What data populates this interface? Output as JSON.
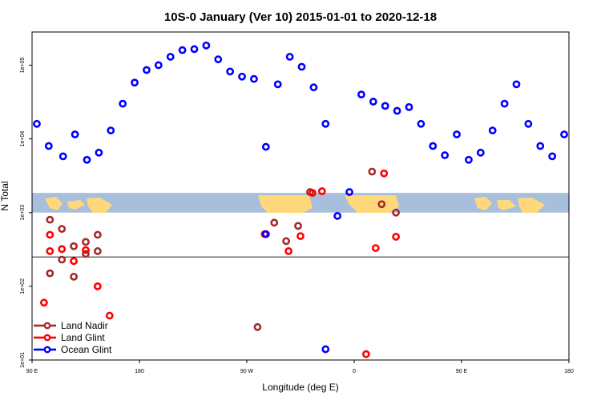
{
  "chart_data": {
    "type": "scatter",
    "title": "10S-0 January (Ver 10)   2015-01-01 to 2020-12-18",
    "xlabel": "Longitude (deg E)",
    "ylabel": "N Total",
    "xlim": [
      90,
      540
    ],
    "ylog": true,
    "ylim_log10": [
      1.0,
      5.45
    ],
    "reference_line_y": 250,
    "map_band": {
      "lat_range": "10S-0",
      "x_range": [
        90,
        540
      ],
      "y_range": [
        1000,
        1850
      ]
    },
    "x_ticks": [
      {
        "value": 90,
        "label": "90 E"
      },
      {
        "value": 180,
        "label": "180"
      },
      {
        "value": 270,
        "label": "90 W"
      },
      {
        "value": 360,
        "label": "0"
      },
      {
        "value": 450,
        "label": "90 E"
      },
      {
        "value": 540,
        "label": "180"
      }
    ],
    "y_ticks": [
      {
        "value": 10,
        "label": "1e+01"
      },
      {
        "value": 100,
        "label": "1e+02"
      },
      {
        "value": 1000,
        "label": "1e+03"
      },
      {
        "value": 10000,
        "label": "1e+04"
      },
      {
        "value": 100000,
        "label": "1e+05"
      }
    ],
    "series": [
      {
        "name": "Land Nadir",
        "color": "#a52a2a",
        "x": [
          105,
          115,
          125,
          135,
          145,
          279,
          293,
          303,
          313,
          323,
          375,
          383,
          395,
          105,
          115,
          125,
          135,
          145
        ],
        "y": [
          150,
          230,
          135,
          275,
          300,
          28,
          730,
          410,
          660,
          1900,
          3600,
          1300,
          1000,
          800,
          600,
          350,
          400,
          500
        ]
      },
      {
        "name": "Land Glint",
        "color": "#ff0000",
        "x": [
          100,
          105,
          115,
          125,
          135,
          145,
          155,
          285,
          305,
          315,
          325,
          333,
          370,
          378,
          385,
          395,
          105
        ],
        "y": [
          60,
          300,
          320,
          220,
          310,
          100,
          40,
          510,
          300,
          480,
          1850,
          1950,
          12,
          330,
          3400,
          470,
          500
        ]
      },
      {
        "name": "Ocean Glint",
        "color": "#0000ff",
        "x": [
          94,
          104,
          116,
          126,
          136,
          146,
          156,
          166,
          176,
          186,
          196,
          206,
          216,
          226,
          236,
          246,
          256,
          266,
          276,
          286,
          296,
          306,
          316,
          326,
          336,
          346,
          356,
          366,
          376,
          386,
          396,
          406,
          416,
          426,
          436,
          446,
          456,
          466,
          476,
          486,
          496,
          506,
          516,
          526,
          536,
          286,
          336
        ],
        "y": [
          16000,
          8000,
          5800,
          11500,
          5200,
          6500,
          13000,
          30000,
          58000,
          86000,
          100000,
          130000,
          160000,
          165000,
          185000,
          120000,
          82000,
          70000,
          65000,
          7800,
          55000,
          130000,
          95000,
          50000,
          16000,
          900,
          1900,
          40000,
          32000,
          28000,
          24000,
          27000,
          16000,
          8000,
          6000,
          11500,
          5200,
          6500,
          13000,
          30000,
          55000,
          16000,
          8000,
          5800,
          11500,
          510,
          14
        ]
      }
    ],
    "legend": {
      "placement": "bottom-left",
      "entries": [
        "Land Nadir",
        "Land Glint",
        "Ocean Glint"
      ]
    }
  }
}
